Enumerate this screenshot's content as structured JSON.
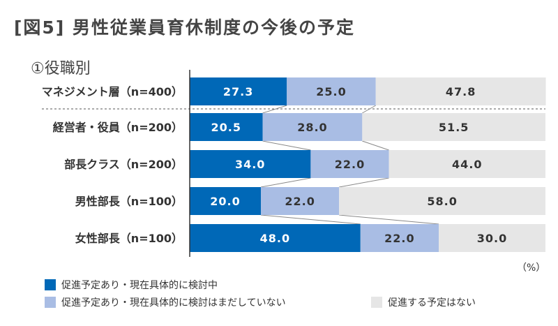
{
  "chart_data": {
    "type": "bar",
    "stacked": true,
    "orientation": "horizontal",
    "title": "[図5] 男性従業員育休制度の今後の予定",
    "subtitle": "①役職別",
    "unit": "（%）",
    "xlim": [
      0,
      100
    ],
    "categories": [
      "マネジメント層（n=400）",
      "経営者・役員（n=200）",
      "部長クラス（n=200）",
      "男性部長（n=100）",
      "女性部長（n=100）"
    ],
    "series": [
      {
        "name": "促進予定あり・現在具体的に検討中",
        "color": "#0068b7",
        "label_color": "#ffffff",
        "values": [
          27.3,
          20.5,
          34.0,
          20.0,
          48.0
        ]
      },
      {
        "name": "促進予定あり・現在具体的に検討はまだしていない",
        "color": "#a9bde4",
        "label_color": "#333333",
        "values": [
          25.0,
          28.0,
          22.0,
          22.0,
          22.0
        ]
      },
      {
        "name": "促進する予定はない",
        "color": "#e6e6e6",
        "label_color": "#333333",
        "values": [
          47.8,
          51.5,
          44.0,
          58.0,
          30.0
        ]
      }
    ]
  }
}
